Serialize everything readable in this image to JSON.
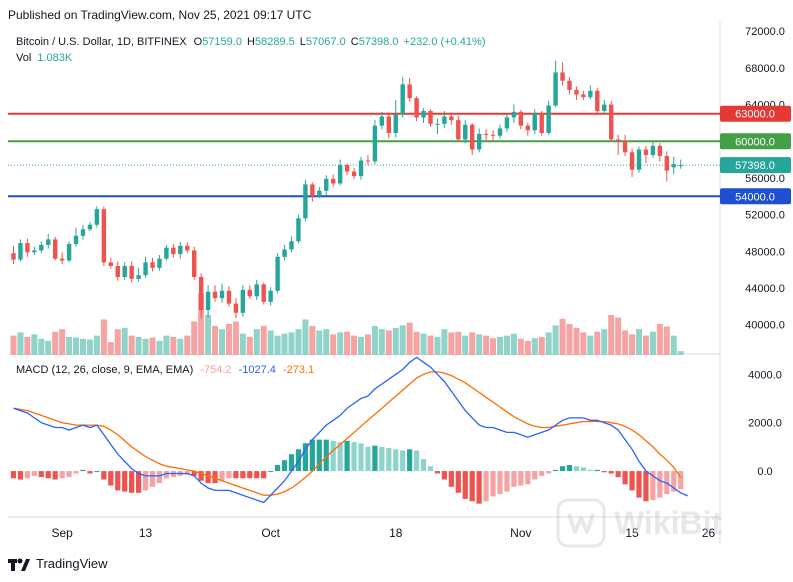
{
  "header": {
    "published": "Published on TradingView.com, Nov 25, 2021 09:17 UTC"
  },
  "legend": {
    "symbol": "Bitcoin / U.S. Dollar, 1D, BITFINEX",
    "o_label": "O",
    "o_value": "57159.0",
    "h_label": "H",
    "h_value": "58289.5",
    "l_label": "L",
    "l_value": "57067.0",
    "c_label": "C",
    "c_value": "57398.0",
    "change": "+232.0 (+0.41%)",
    "vol_label": "Vol",
    "vol_value": "1.083K"
  },
  "macd_legend": {
    "label": "MACD (12, 26, close, 9, EMA, EMA)",
    "hist": "-754.2",
    "macd": "-1027.4",
    "signal": "-273.1"
  },
  "footer": {
    "brand": "TradingView",
    "watermark": "WikiBit"
  },
  "colors": {
    "up": "#26a69a",
    "down": "#ef5350",
    "vol_up": "#8fd3c9",
    "vol_down": "#f5a3a3",
    "macd_line": "#2962ff",
    "signal_line": "#ff6d00",
    "line_63000": "#e53935",
    "line_60000": "#43a047",
    "line_54000": "#1e4fd0"
  },
  "chart_data": [
    {
      "type": "candlestick",
      "title": "Bitcoin / U.S. Dollar, 1D, BITFINEX",
      "y_ticks": [
        40000,
        44000,
        48000,
        52000,
        56000,
        64000,
        68000,
        72000
      ],
      "ylim": [
        36700,
        73000
      ],
      "x_ticks": [
        "Sep",
        "13",
        "Oct",
        "18",
        "Nov",
        "15",
        "26"
      ],
      "x_tick_index": [
        7,
        19,
        37,
        55,
        73,
        89,
        100
      ],
      "horizontal_lines": [
        {
          "value": 63000,
          "label": "63000.0",
          "color": "#e53935"
        },
        {
          "value": 60000,
          "label": "60000.0",
          "color": "#43a047"
        },
        {
          "value": 54000,
          "label": "54000.0",
          "color": "#1e4fd0"
        }
      ],
      "last_price": {
        "value": 57398,
        "label": "57398.0"
      },
      "close": [
        47100,
        48900,
        47900,
        48100,
        48700,
        49300,
        47200,
        47000,
        48800,
        49700,
        50400,
        50900,
        52600,
        46800,
        46400,
        45200,
        46400,
        45000,
        45400,
        46800,
        46200,
        47200,
        48400,
        47700,
        48600,
        48100,
        45200,
        41600,
        43600,
        42900,
        43700,
        42300,
        41300,
        43800,
        43100,
        44400,
        42500,
        43700,
        47400,
        48200,
        49100,
        51600,
        55300,
        54000,
        54600,
        55900,
        55400,
        57400,
        56700,
        56200,
        57900,
        57800,
        61700,
        62700,
        60900,
        62900,
        66200,
        64700,
        62600,
        63300,
        61900,
        61900,
        62700,
        62300,
        60200,
        61800,
        59100,
        60800,
        60700,
        60600,
        61400,
        62600,
        63200,
        61700,
        61200,
        63100,
        60900,
        63900,
        67500,
        66600,
        65600,
        65100,
        64800,
        65500,
        63300,
        64000,
        60200,
        60000,
        58800,
        56900,
        59100,
        58500,
        59500,
        58400,
        56800,
        57500,
        57400
      ],
      "open": [
        47800,
        47100,
        48900,
        47900,
        48100,
        48700,
        49300,
        47200,
        47000,
        48800,
        49700,
        50400,
        50900,
        52600,
        46800,
        46400,
        45200,
        46400,
        45000,
        45400,
        46800,
        46200,
        47200,
        48400,
        47700,
        48600,
        48100,
        45200,
        41600,
        43600,
        42900,
        43700,
        42300,
        41300,
        43800,
        43100,
        44400,
        42500,
        43700,
        47400,
        48200,
        49100,
        51600,
        55300,
        54000,
        54600,
        55900,
        55400,
        57400,
        56700,
        56200,
        57900,
        57800,
        61700,
        62700,
        60900,
        62900,
        66200,
        64700,
        62600,
        63300,
        61900,
        61900,
        62700,
        62300,
        60200,
        61800,
        59100,
        60800,
        60700,
        60600,
        61400,
        62600,
        63200,
        61700,
        61200,
        63100,
        60900,
        63900,
        67500,
        66600,
        65600,
        65100,
        64800,
        65500,
        63300,
        64000,
        60200,
        60000,
        58800,
        56900,
        59100,
        58500,
        59500,
        58400,
        57159,
        57400
      ],
      "high": [
        48600,
        49300,
        49400,
        48500,
        49100,
        49900,
        49600,
        47900,
        49100,
        50600,
        50900,
        51200,
        52900,
        52900,
        47300,
        46900,
        46800,
        46900,
        46200,
        47400,
        47300,
        47600,
        48700,
        48800,
        49000,
        49000,
        48500,
        45600,
        44300,
        44300,
        44500,
        44200,
        42900,
        44300,
        44300,
        44900,
        44600,
        44100,
        47800,
        48700,
        49600,
        52000,
        55800,
        55500,
        55000,
        56300,
        56400,
        58000,
        57600,
        57100,
        58300,
        58500,
        62300,
        63200,
        63100,
        64500,
        67000,
        66900,
        64900,
        63600,
        63500,
        62500,
        63300,
        63100,
        62800,
        62300,
        62000,
        61400,
        61300,
        61200,
        61800,
        63000,
        64000,
        63400,
        62000,
        63500,
        63300,
        64400,
        68800,
        68600,
        67000,
        66000,
        65500,
        66100,
        65800,
        64500,
        64400,
        60700,
        60700,
        59200,
        59400,
        59500,
        60000,
        59800,
        58900,
        58300,
        58000
      ],
      "low": [
        46600,
        46900,
        47400,
        47600,
        47800,
        48300,
        47000,
        46600,
        46800,
        48500,
        49300,
        50200,
        50600,
        46400,
        46100,
        44800,
        44900,
        44600,
        44700,
        45100,
        45800,
        45900,
        47000,
        47300,
        47200,
        47800,
        44900,
        40700,
        40800,
        42500,
        42400,
        42000,
        40700,
        40900,
        42800,
        42700,
        42200,
        42100,
        43400,
        47000,
        47900,
        48900,
        51300,
        53400,
        53800,
        54100,
        55000,
        55200,
        56300,
        55900,
        55800,
        57400,
        57500,
        61300,
        60300,
        60400,
        62600,
        64300,
        62200,
        62000,
        61600,
        60800,
        61500,
        61800,
        59900,
        59800,
        58500,
        58800,
        60000,
        60000,
        60300,
        61000,
        62000,
        61300,
        60600,
        60800,
        60600,
        60700,
        63700,
        66100,
        65100,
        64500,
        64500,
        64600,
        63000,
        62900,
        60000,
        58500,
        58400,
        56100,
        56600,
        57600,
        58200,
        57800,
        55600,
        56400,
        57000
      ],
      "volume": [
        30,
        35,
        28,
        32,
        25,
        22,
        36,
        40,
        28,
        27,
        25,
        24,
        30,
        55,
        20,
        40,
        42,
        30,
        28,
        25,
        27,
        22,
        30,
        28,
        25,
        30,
        52,
        96,
        62,
        45,
        40,
        48,
        52,
        33,
        28,
        40,
        45,
        38,
        30,
        33,
        35,
        40,
        55,
        45,
        38,
        40,
        32,
        35,
        36,
        30,
        28,
        32,
        45,
        40,
        38,
        42,
        46,
        50,
        36,
        33,
        30,
        28,
        40,
        35,
        36,
        30,
        35,
        32,
        30,
        26,
        28,
        30,
        33,
        25,
        22,
        26,
        28,
        35,
        46,
        56,
        48,
        42,
        35,
        30,
        36,
        40,
        62,
        58,
        38,
        32,
        40,
        30,
        36,
        48,
        44,
        30,
        6
      ]
    },
    {
      "type": "macd",
      "title": "MACD (12, 26, close, 9, EMA, EMA)",
      "y_ticks": [
        0,
        2000,
        4000
      ],
      "ylim": [
        -1900,
        4800
      ],
      "macd": [
        2600,
        2500,
        2400,
        2200,
        2000,
        1900,
        1800,
        1800,
        1700,
        1800,
        1900,
        1800,
        1900,
        1500,
        1100,
        700,
        400,
        100,
        -100,
        -200,
        -200,
        -200,
        -100,
        -100,
        -100,
        -100,
        -200,
        -500,
        -700,
        -800,
        -800,
        -800,
        -900,
        -1000,
        -1100,
        -1200,
        -1300,
        -1000,
        -700,
        -400,
        0,
        400,
        900,
        1300,
        1600,
        1900,
        2100,
        2300,
        2600,
        2800,
        3000,
        3100,
        3400,
        3600,
        3800,
        4000,
        4200,
        4500,
        4700,
        4500,
        4300,
        4000,
        3700,
        3300,
        2900,
        2500,
        2200,
        1900,
        1800,
        1800,
        1700,
        1600,
        1600,
        1500,
        1400,
        1500,
        1600,
        1700,
        1900,
        2100,
        2200,
        2200,
        2200,
        2100,
        2100,
        2000,
        1900,
        1700,
        1300,
        900,
        400,
        0,
        -200,
        -400,
        -500,
        -700,
        -900,
        -1027
      ],
      "signal": [
        2600,
        2550,
        2500,
        2400,
        2300,
        2200,
        2100,
        2000,
        1950,
        1900,
        1900,
        1900,
        1900,
        1850,
        1700,
        1500,
        1250,
        1000,
        800,
        600,
        450,
        300,
        200,
        150,
        100,
        50,
        0,
        -100,
        -200,
        -300,
        -400,
        -500,
        -600,
        -700,
        -800,
        -900,
        -1000,
        -1000,
        -950,
        -850,
        -700,
        -500,
        -250,
        0,
        300,
        600,
        850,
        1100,
        1350,
        1600,
        1850,
        2100,
        2350,
        2600,
        2850,
        3100,
        3350,
        3600,
        3850,
        4000,
        4100,
        4100,
        4050,
        3950,
        3800,
        3650,
        3450,
        3250,
        3050,
        2850,
        2650,
        2450,
        2250,
        2100,
        1950,
        1850,
        1800,
        1800,
        1850,
        1900,
        1950,
        2000,
        2050,
        2050,
        2050,
        2050,
        2000,
        1950,
        1850,
        1700,
        1500,
        1250,
        1000,
        700,
        450,
        150,
        -273
      ],
      "histogram": [
        -300,
        -350,
        -300,
        -200,
        -250,
        -300,
        -350,
        -300,
        -250,
        -100,
        50,
        -100,
        0,
        -350,
        -600,
        -800,
        -850,
        -900,
        -900,
        -800,
        -650,
        -500,
        -300,
        -250,
        -200,
        -150,
        -200,
        -400,
        -500,
        -500,
        -400,
        -300,
        -300,
        -300,
        -300,
        -300,
        -300,
        0,
        250,
        450,
        700,
        900,
        1150,
        1300,
        1300,
        1300,
        1250,
        1200,
        1250,
        1200,
        1150,
        1000,
        1050,
        1000,
        950,
        900,
        850,
        900,
        850,
        500,
        200,
        -100,
        -350,
        -650,
        -900,
        -1150,
        -1250,
        -1350,
        -1250,
        -1050,
        -950,
        -850,
        -650,
        -600,
        -550,
        -350,
        -200,
        -100,
        50,
        200,
        250,
        200,
        150,
        50,
        50,
        -50,
        -100,
        -250,
        -550,
        -800,
        -1100,
        -1250,
        -1200,
        -1100,
        -950,
        -850,
        -754
      ]
    }
  ]
}
